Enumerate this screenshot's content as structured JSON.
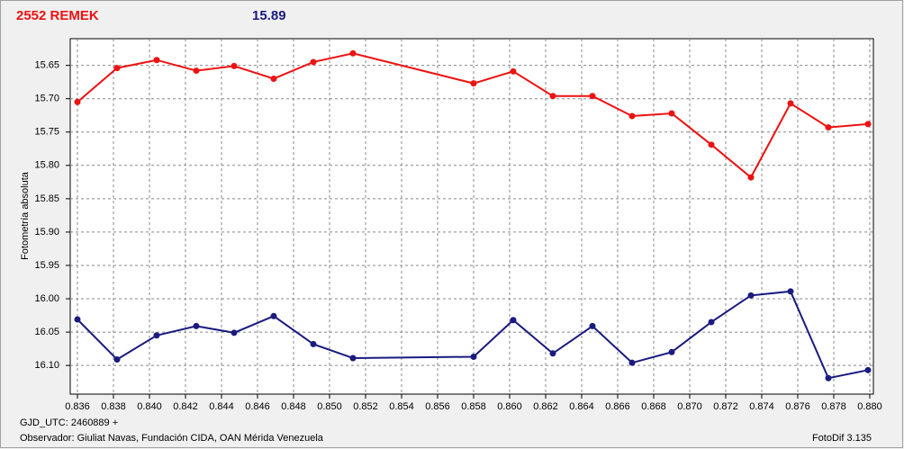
{
  "chart_data": {
    "type": "line",
    "title": "2552 REMEK",
    "subtitle": "15.89",
    "title_color": "#ee1111",
    "subtitle_color": "#1a1a80",
    "y_label": "Fotometría absoluta",
    "x_label": "GJD_UTC: 2460889 +",
    "observer": "Observador: Giuliat Navas, Fundación CIDA, OAN Mérida Venezuela",
    "software": "FotoDif 3.135",
    "y_inverted": true,
    "grid": true,
    "xlim": [
      0.8356,
      0.8802
    ],
    "ylim": [
      15.61,
      16.143
    ],
    "xticks": [
      0.836,
      0.838,
      {
        "value": 0.84,
        "label": "0.840"
      },
      0.842,
      0.844,
      0.846,
      0.848,
      {
        "value": 0.85,
        "label": "0.850"
      },
      0.852,
      0.854,
      0.856,
      0.858,
      {
        "value": 0.86,
        "label": "0.860"
      },
      0.862,
      0.864,
      0.866,
      0.868,
      {
        "value": 0.87,
        "label": "0.870"
      },
      0.872,
      0.874,
      0.876,
      0.878,
      {
        "value": 0.88,
        "label": "0.880"
      }
    ],
    "yticks": [
      15.65,
      {
        "value": 15.7,
        "label": "15.70"
      },
      15.75,
      {
        "value": 15.8,
        "label": "15.80"
      },
      15.85,
      {
        "value": 15.9,
        "label": "15.90"
      },
      15.95,
      {
        "value": 16.0,
        "label": "16.00"
      },
      16.05,
      {
        "value": 16.1,
        "label": "16.10"
      }
    ],
    "x": [
      0.836,
      0.8382,
      0.8404,
      0.8426,
      0.8447,
      0.8469,
      0.8491,
      0.8513,
      0.858,
      0.8602,
      0.8624,
      0.8646,
      0.8668,
      0.869,
      0.8712,
      0.8734,
      0.8756,
      0.8777,
      0.8799
    ],
    "series": [
      {
        "color": "#ee1111",
        "values": [
          15.705,
          15.654,
          15.642,
          15.658,
          15.651,
          15.67,
          15.645,
          15.632,
          15.677,
          15.659,
          15.696,
          15.696,
          15.726,
          15.722,
          15.769,
          15.818,
          15.707,
          15.743,
          15.738
        ]
      },
      {
        "color": "#1a1a80",
        "values": [
          16.031,
          16.091,
          16.055,
          16.041,
          16.051,
          16.026,
          16.068,
          16.089,
          16.087,
          16.032,
          16.082,
          16.041,
          16.096,
          16.08,
          16.035,
          15.995,
          15.989,
          16.119,
          16.107
        ]
      }
    ]
  }
}
